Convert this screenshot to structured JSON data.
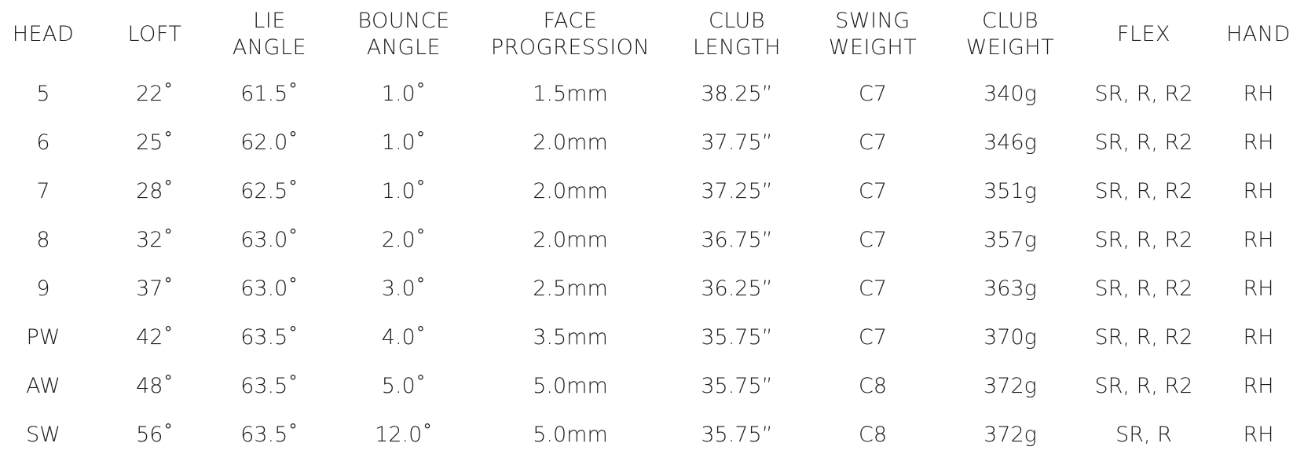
{
  "table": {
    "headers": [
      "HEAD",
      "LOFT",
      "LIE\nANGLE",
      "BOUNCE\nANGLE",
      "FACE\nPROGRESSION",
      "CLUB\nLENGTH",
      "SWING\nWEIGHT",
      "CLUB\nWEIGHT",
      "FLEX",
      "HAND"
    ],
    "rows": [
      [
        "5",
        "22˚",
        "61.5˚",
        "1.0˚",
        "1.5mm",
        "38.25”",
        "C7",
        "340g",
        "SR, R, R2",
        "RH"
      ],
      [
        "6",
        "25˚",
        "62.0˚",
        "1.0˚",
        "2.0mm",
        "37.75”",
        "C7",
        "346g",
        "SR, R, R2",
        "RH"
      ],
      [
        "7",
        "28˚",
        "62.5˚",
        "1.0˚",
        "2.0mm",
        "37.25”",
        "C7",
        "351g",
        "SR, R, R2",
        "RH"
      ],
      [
        "8",
        "32˚",
        "63.0˚",
        "2.0˚",
        "2.0mm",
        "36.75”",
        "C7",
        "357g",
        "SR, R, R2",
        "RH"
      ],
      [
        "9",
        "37˚",
        "63.0˚",
        "3.0˚",
        "2.5mm",
        "36.25”",
        "C7",
        "363g",
        "SR, R, R2",
        "RH"
      ],
      [
        "PW",
        "42˚",
        "63.5˚",
        "4.0˚",
        "3.5mm",
        "35.75”",
        "C7",
        "370g",
        "SR, R, R2",
        "RH"
      ],
      [
        "AW",
        "48˚",
        "63.5˚",
        "5.0˚",
        "5.0mm",
        "35.75”",
        "C8",
        "372g",
        "SR, R, R2",
        "RH"
      ],
      [
        "SW",
        "56˚",
        "63.5˚",
        "12.0˚",
        "5.0mm",
        "35.75”",
        "C8",
        "372g",
        "SR, R",
        "RH"
      ]
    ]
  }
}
